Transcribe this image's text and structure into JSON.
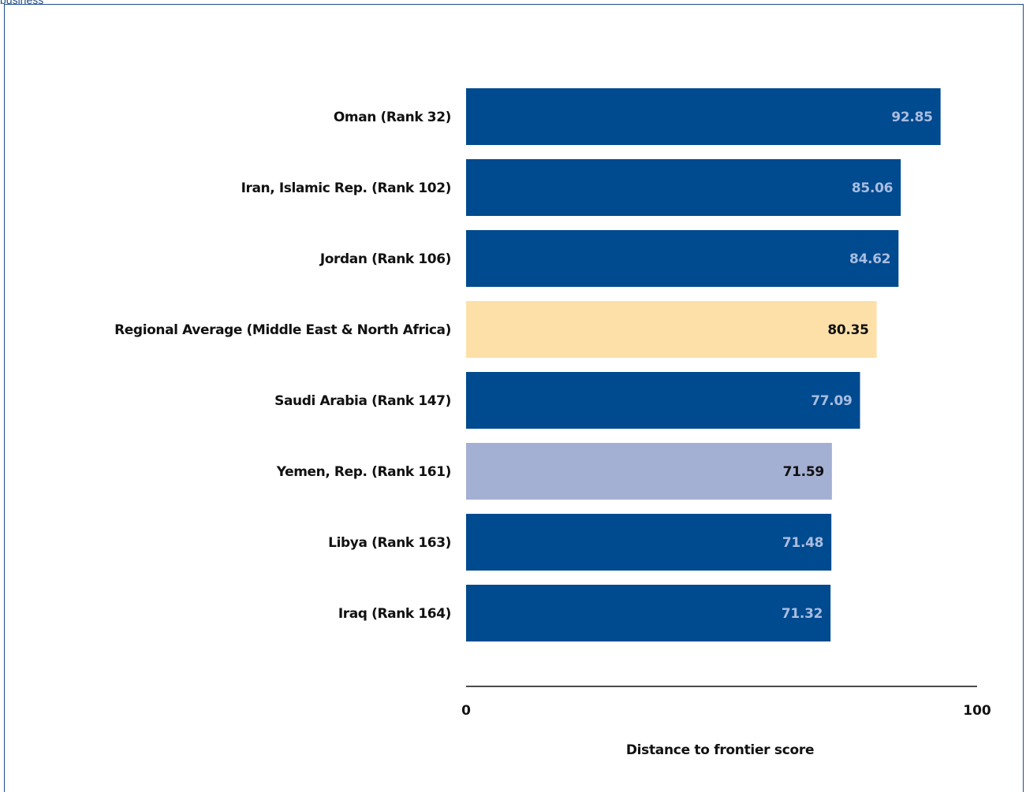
{
  "header": {
    "caption": "business"
  },
  "chart_data": {
    "type": "bar",
    "orientation": "horizontal",
    "categories": [
      "Oman (Rank 32)",
      "Iran, Islamic Rep. (Rank 102)",
      "Jordan (Rank 106)",
      "Regional Average (Middle East & North Africa)",
      "Saudi Arabia (Rank 147)",
      "Yemen, Rep. (Rank 161)",
      "Libya (Rank 163)",
      "Iraq (Rank 164)"
    ],
    "values": [
      92.85,
      85.06,
      84.62,
      80.35,
      77.09,
      71.59,
      71.48,
      71.32
    ],
    "value_labels": [
      "92.85",
      "85.06",
      "84.62",
      "80.35",
      "77.09",
      "71.59",
      "71.48",
      "71.32"
    ],
    "bar_colors": [
      "#004a8f",
      "#004a8f",
      "#004a8f",
      "#fde0a8",
      "#004a8f",
      "#a4b0d3",
      "#004a8f",
      "#004a8f"
    ],
    "label_colors": [
      "#a9bde0",
      "#a9bde0",
      "#a9bde0",
      "#111111",
      "#a9bde0",
      "#111111",
      "#a9bde0",
      "#a9bde0"
    ],
    "xlim": [
      0,
      100
    ],
    "xticks": [
      "0",
      "100"
    ],
    "xlabel": "Distance to frontier score",
    "grid": false
  }
}
